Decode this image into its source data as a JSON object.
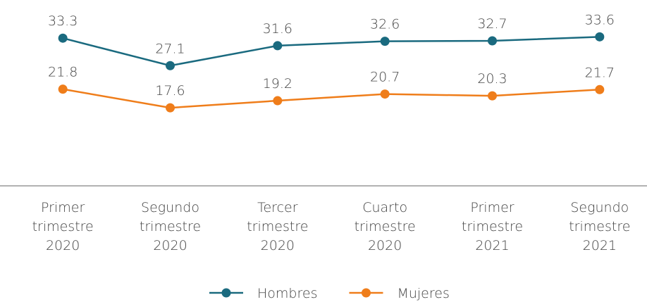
{
  "chart_data": {
    "type": "line",
    "categories": [
      "Primer trimestre 2020",
      "Segundo trimestre 2020",
      "Tercer trimestre 2020",
      "Cuarto trimestre 2020",
      "Primer trimestre 2021",
      "Segundo trimestre 2021"
    ],
    "series": [
      {
        "name": "Hombres",
        "color": "#1a6a7f",
        "values": [
          33.3,
          27.1,
          31.6,
          32.6,
          32.7,
          33.6
        ]
      },
      {
        "name": "Mujeres",
        "color": "#ef7d1a",
        "values": [
          21.8,
          17.6,
          19.2,
          20.7,
          20.3,
          21.7
        ]
      }
    ],
    "ylim": [
      0,
      40
    ],
    "legend": "bottom"
  }
}
